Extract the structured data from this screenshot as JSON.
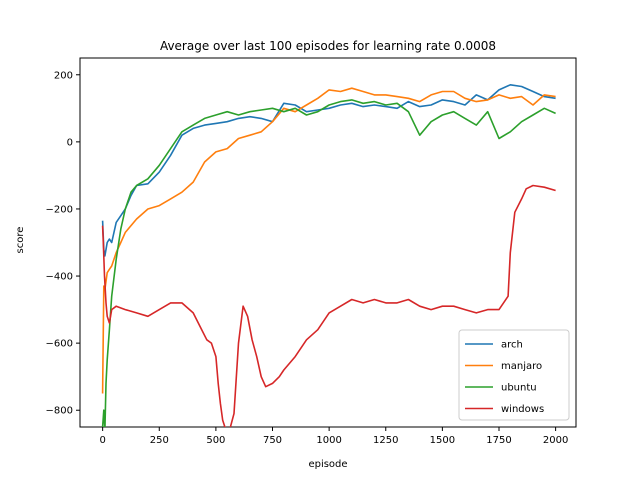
{
  "chart_data": {
    "type": "line",
    "title": "Average over last 100 episodes for learning rate 0.0008",
    "xlabel": "episode",
    "ylabel": "score",
    "xlim": [
      -100,
      2090
    ],
    "ylim": [
      -850,
      250
    ],
    "xticks": [
      0,
      250,
      500,
      750,
      1000,
      1250,
      1500,
      1750,
      2000
    ],
    "yticks": [
      -800,
      -600,
      -400,
      -200,
      0,
      200
    ],
    "legend_position": "lower-right",
    "series": [
      {
        "name": "arch",
        "color": "#1f77b4",
        "x": [
          0,
          5,
          10,
          20,
          30,
          40,
          60,
          80,
          100,
          125,
          150,
          200,
          250,
          300,
          350,
          400,
          450,
          500,
          550,
          600,
          650,
          700,
          750,
          800,
          850,
          900,
          950,
          1000,
          1050,
          1100,
          1150,
          1200,
          1250,
          1300,
          1350,
          1400,
          1450,
          1500,
          1550,
          1600,
          1650,
          1700,
          1750,
          1800,
          1850,
          1900,
          1950,
          2000
        ],
        "y": [
          -235,
          -320,
          -340,
          -300,
          -290,
          -300,
          -240,
          -220,
          -200,
          -160,
          -130,
          -125,
          -90,
          -40,
          20,
          40,
          50,
          55,
          60,
          70,
          75,
          70,
          60,
          115,
          110,
          90,
          95,
          100,
          110,
          115,
          105,
          110,
          105,
          100,
          120,
          105,
          110,
          125,
          120,
          110,
          140,
          125,
          155,
          170,
          165,
          150,
          135,
          130
        ]
      },
      {
        "name": "manjaro",
        "color": "#ff7f0e",
        "x": [
          0,
          5,
          10,
          20,
          30,
          40,
          60,
          80,
          100,
          150,
          200,
          250,
          300,
          350,
          400,
          450,
          500,
          550,
          600,
          650,
          700,
          750,
          800,
          850,
          900,
          950,
          1000,
          1050,
          1100,
          1150,
          1200,
          1250,
          1300,
          1350,
          1400,
          1450,
          1500,
          1550,
          1600,
          1650,
          1700,
          1750,
          1800,
          1850,
          1900,
          1950,
          2000
        ],
        "y": [
          -750,
          -430,
          -440,
          -390,
          -380,
          -370,
          -330,
          -300,
          -270,
          -230,
          -200,
          -190,
          -170,
          -150,
          -120,
          -60,
          -30,
          -20,
          10,
          20,
          30,
          60,
          100,
          90,
          110,
          130,
          155,
          150,
          160,
          150,
          140,
          140,
          135,
          130,
          120,
          140,
          150,
          150,
          130,
          120,
          125,
          140,
          130,
          135,
          110,
          140,
          135
        ]
      },
      {
        "name": "ubuntu",
        "color": "#2ca02c",
        "x": [
          0,
          5,
          10,
          15,
          20,
          30,
          40,
          60,
          80,
          100,
          125,
          150,
          200,
          250,
          300,
          350,
          400,
          450,
          500,
          550,
          600,
          650,
          700,
          750,
          800,
          850,
          900,
          950,
          1000,
          1050,
          1100,
          1150,
          1200,
          1250,
          1300,
          1350,
          1400,
          1450,
          1500,
          1550,
          1600,
          1650,
          1700,
          1750,
          1800,
          1850,
          1900,
          1950,
          2000
        ],
        "y": [
          -850,
          -800,
          -860,
          -720,
          -650,
          -560,
          -460,
          -350,
          -260,
          -200,
          -150,
          -130,
          -110,
          -70,
          -20,
          30,
          50,
          70,
          80,
          90,
          80,
          90,
          95,
          100,
          90,
          100,
          80,
          90,
          110,
          120,
          125,
          115,
          120,
          110,
          115,
          90,
          20,
          60,
          80,
          90,
          70,
          50,
          90,
          10,
          30,
          60,
          80,
          100,
          85
        ]
      },
      {
        "name": "windows",
        "color": "#d62728",
        "x": [
          0,
          3,
          8,
          15,
          20,
          30,
          40,
          60,
          100,
          150,
          200,
          250,
          300,
          350,
          400,
          430,
          460,
          480,
          500,
          510,
          520,
          530,
          540,
          560,
          580,
          600,
          620,
          640,
          660,
          680,
          700,
          720,
          750,
          780,
          800,
          850,
          900,
          950,
          1000,
          1050,
          1100,
          1150,
          1200,
          1250,
          1300,
          1350,
          1400,
          1450,
          1500,
          1550,
          1600,
          1650,
          1700,
          1750,
          1790,
          1800,
          1820,
          1850,
          1870,
          1900,
          1950,
          2000
        ],
        "y": [
          -250,
          -300,
          -400,
          -480,
          -520,
          -540,
          -500,
          -490,
          -500,
          -510,
          -520,
          -500,
          -480,
          -480,
          -510,
          -550,
          -590,
          -600,
          -640,
          -720,
          -780,
          -830,
          -850,
          -860,
          -810,
          -600,
          -490,
          -520,
          -590,
          -640,
          -700,
          -730,
          -720,
          -700,
          -680,
          -640,
          -590,
          -560,
          -510,
          -490,
          -470,
          -480,
          -470,
          -480,
          -480,
          -470,
          -490,
          -500,
          -490,
          -490,
          -500,
          -510,
          -500,
          -500,
          -460,
          -330,
          -210,
          -170,
          -140,
          -130,
          -135,
          -145
        ]
      }
    ]
  }
}
